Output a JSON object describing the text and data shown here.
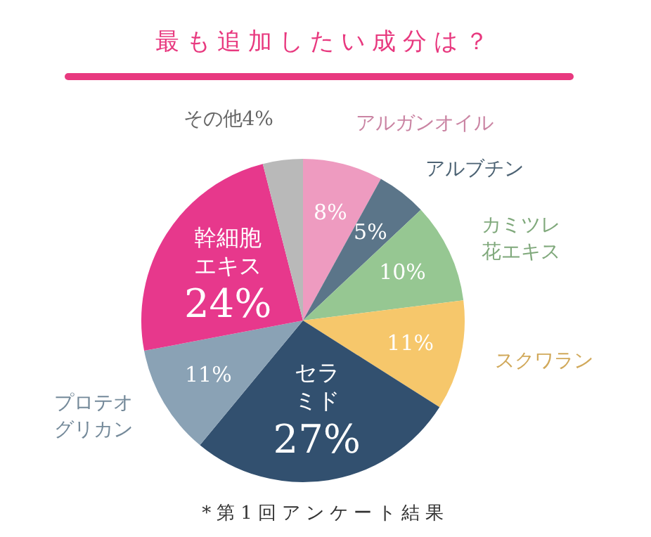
{
  "chart_data": {
    "type": "pie",
    "title": "最も追加したい成分は？",
    "categories": [
      "アルガンオイル",
      "アルブチン",
      "カミツレ花エキス",
      "スクワラン",
      "セラミド",
      "プロテオグリカン",
      "幹細胞エキス",
      "その他"
    ],
    "values": [
      8,
      5,
      10,
      11,
      27,
      11,
      24,
      4
    ],
    "colors": [
      "#ee9bc0",
      "#5b7589",
      "#96c792",
      "#f6c76b",
      "#32506f",
      "#8aa2b5",
      "#e7388c",
      "#b9b9b9"
    ],
    "value_labels": [
      "8%",
      "5%",
      "10%",
      "11%",
      "27%",
      "11%",
      "24%",
      "4%"
    ],
    "annotations": [
      "*第1回アンケート結果"
    ],
    "legend": false
  }
}
